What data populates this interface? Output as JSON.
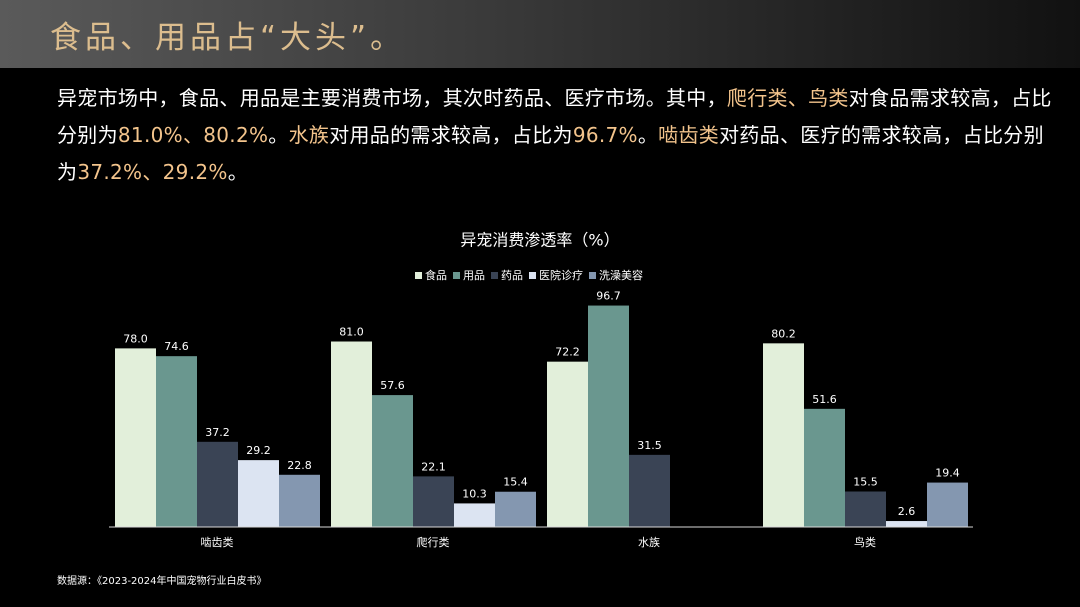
{
  "header": {
    "title": "食品、用品占“大头”。"
  },
  "intro": {
    "highlight_color": "#f3c48c",
    "segments": [
      {
        "text": "异宠市场中，食品、用品是主要消费市场，其次时药品、医疗市场。其中，",
        "highlight": false
      },
      {
        "text": "爬行类、鸟类",
        "highlight": true
      },
      {
        "text": "对食品需求较高，占比分别为",
        "highlight": false
      },
      {
        "text": "81.0%、80.2%",
        "highlight": true
      },
      {
        "text": "。",
        "highlight": false
      },
      {
        "text": "水族",
        "highlight": true
      },
      {
        "text": "对用品的需求较高，占比为",
        "highlight": false
      },
      {
        "text": "96.7%",
        "highlight": true
      },
      {
        "text": "。",
        "highlight": false
      },
      {
        "text": "啮齿类",
        "highlight": true
      },
      {
        "text": "对药品、医疗的需求较高，占比分别为",
        "highlight": false
      },
      {
        "text": "37.2%、29.2%",
        "highlight": true
      },
      {
        "text": "。",
        "highlight": false
      }
    ]
  },
  "chart_data": {
    "type": "bar",
    "title": "异宠消费渗透率（%）",
    "categories": [
      "啮齿类",
      "爬行类",
      "水族",
      "鸟类"
    ],
    "ylim": [
      0,
      100
    ],
    "series": [
      {
        "name": "食品",
        "color": "#e2efda",
        "values": [
          78,
          81,
          72.2,
          80.2
        ],
        "value_labels": [
          "78.0",
          "81.0",
          "72.2",
          "80.2"
        ]
      },
      {
        "name": "用品",
        "color": "#6a978f",
        "values": [
          74.6,
          57.6,
          96.7,
          51.6
        ]
      },
      {
        "name": "药品",
        "color": "#3a4455",
        "values": [
          37.2,
          22.1,
          31.5,
          15.5
        ]
      },
      {
        "name": "医院诊疗",
        "color": "#dce4f2",
        "values": [
          29.2,
          10.3,
          null,
          2.6
        ]
      },
      {
        "name": "洗澡美容",
        "color": "#8497b0",
        "values": [
          22.8,
          15.4,
          null,
          19.4
        ]
      }
    ]
  },
  "source": "数据源：《2023-2024年中国宠物行业白皮书》"
}
